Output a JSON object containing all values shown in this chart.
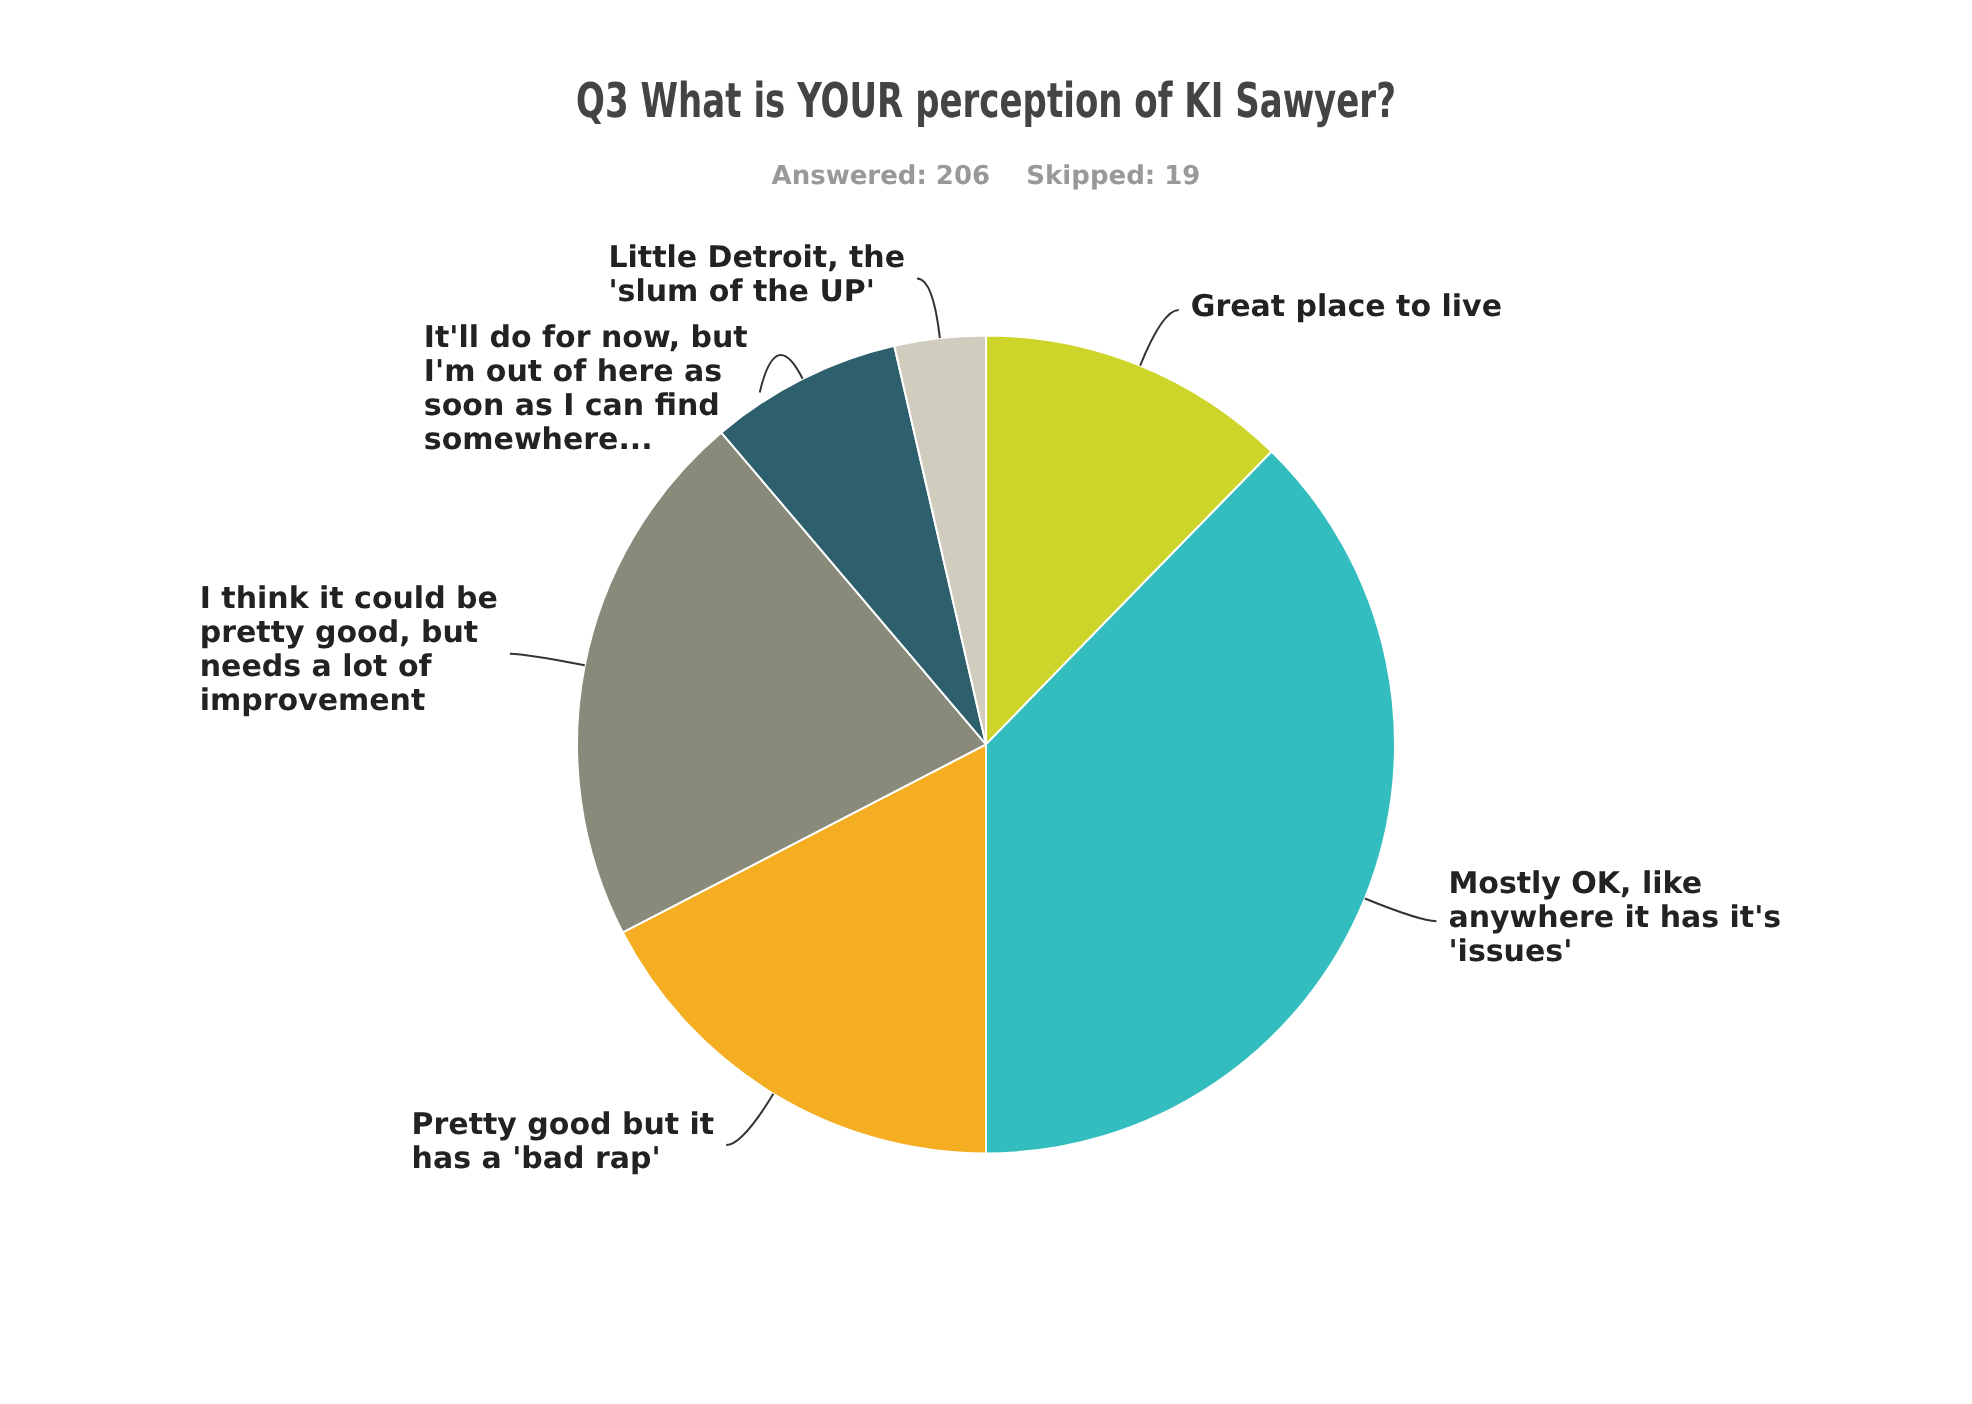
{
  "chart_data": {
    "type": "pie",
    "title": "Q3 What is YOUR perception of KI Sawyer?",
    "subtitle": "Answered: 206    Skipped: 19",
    "categories": [
      "Great place to live",
      "Mostly OK, like anywhere it has it's 'issues'",
      "Pretty good but it has a 'bad rap'",
      "I think it could be pretty good, but needs a lot of improvement",
      "It'll do for now, but I'm out of here as soon as I can find somewhere...",
      "Little Detroit, the 'slum of the UP'"
    ],
    "values": [
      12.3,
      37.7,
      17.4,
      21.4,
      7.6,
      3.6
    ],
    "colors": [
      "#cdd42a",
      "#33bdbf",
      "#f5ad22",
      "#8a8a7a",
      "#2d5f6c",
      "#d0cdbf"
    ],
    "legend": false
  }
}
